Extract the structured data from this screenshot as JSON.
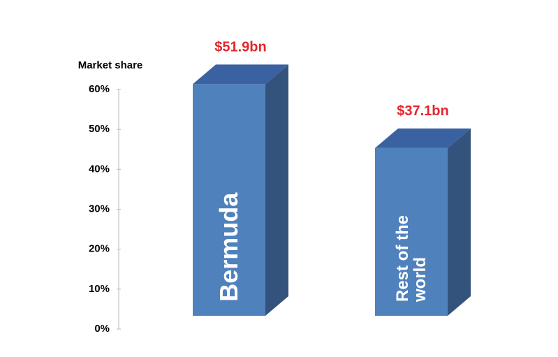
{
  "chart_data": {
    "type": "bar3d",
    "y_label": "Market share",
    "categories": [
      "Bermuda",
      "Rest of the world"
    ],
    "values": [
      58,
      42
    ],
    "annotations": [
      "$51.9bn",
      "$37.1bn"
    ],
    "colors": {
      "front": "#4f81bd",
      "side": "#33537d",
      "top": "#3a62a0"
    },
    "annotation_color": "#e3262c",
    "ylim": [
      0,
      60
    ],
    "yticks": [
      {
        "value": 0,
        "label": "0%"
      },
      {
        "value": 10,
        "label": "10%"
      },
      {
        "value": 20,
        "label": "20%"
      },
      {
        "value": 30,
        "label": "30%"
      },
      {
        "value": 40,
        "label": "40%"
      },
      {
        "value": 50,
        "label": "50%"
      },
      {
        "value": 60,
        "label": "60%"
      }
    ]
  }
}
